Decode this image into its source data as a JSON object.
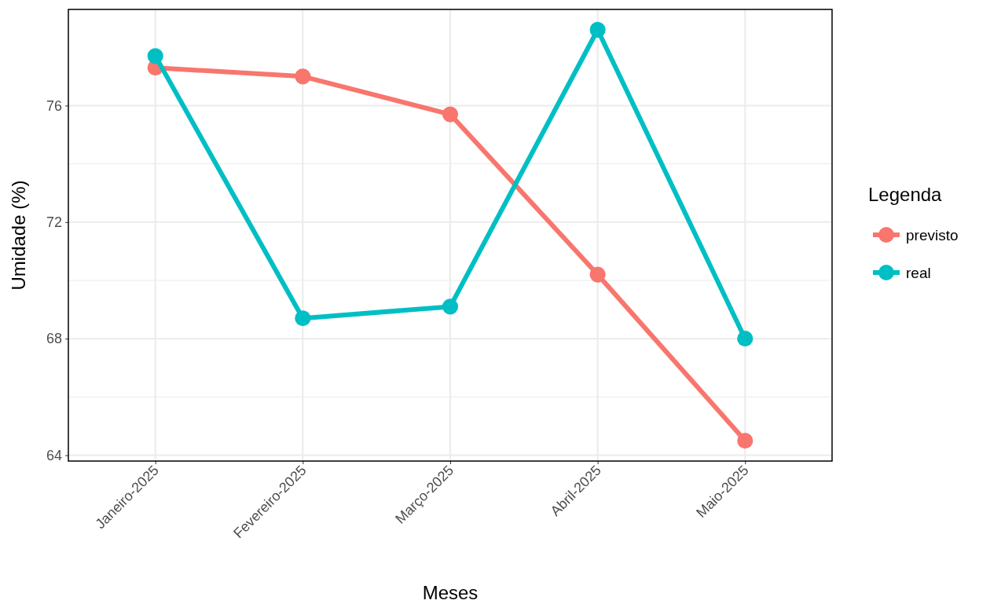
{
  "chart_data": {
    "type": "line",
    "xlabel": "Meses",
    "ylabel": "Umidade (%)",
    "legend_title": "Legenda",
    "categories": [
      "Janeiro-2025",
      "Fevereiro-2025",
      "Março-2025",
      "Abril-2025",
      "Maio-2025"
    ],
    "series": [
      {
        "name": "previsto",
        "color": "#f8766d",
        "values": [
          77.3,
          77.0,
          75.7,
          70.2,
          64.5
        ]
      },
      {
        "name": "real",
        "color": "#00bfc4",
        "values": [
          77.7,
          68.7,
          69.1,
          78.6,
          68.0
        ]
      }
    ],
    "ylim": [
      63.8,
      79.3
    ],
    "yticks": [
      64,
      68,
      72,
      76
    ],
    "grid": true,
    "legend": "right",
    "marker": "circle",
    "line_style": "solid"
  }
}
